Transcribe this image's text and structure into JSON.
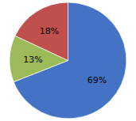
{
  "chart_data": {
    "type": "pie",
    "values": [
      69,
      13,
      18
    ],
    "value_labels": [
      "69%",
      "13%",
      "18%"
    ],
    "colors": [
      "#4472C4",
      "#9BBB59",
      "#C0504D"
    ],
    "data_labels": true
  }
}
